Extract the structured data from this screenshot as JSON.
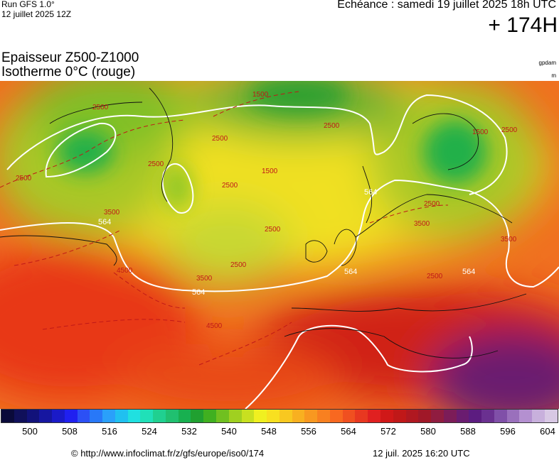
{
  "header": {
    "run_label": "Run GFS 1.0°",
    "run_date": "12 juillet 2025 12Z",
    "echeance": "Echéance : samedi 19 juillet 2025 18h UTC",
    "horizon": "+ 174H"
  },
  "product": {
    "title": "Epaisseur Z500-Z1000",
    "subtitle": "Isotherme 0°C (rouge)",
    "unit_main": "gpdam",
    "unit_sub": "m"
  },
  "map": {
    "thickness_contours": [
      {
        "label": "564"
      },
      {
        "label": "564"
      },
      {
        "label": "564"
      },
      {
        "label": "564"
      },
      {
        "label": "564"
      }
    ],
    "freezing_level_labels": [
      "2500",
      "1500",
      "2500",
      "1500",
      "2500",
      "2500",
      "2500",
      "2500",
      "1500",
      "2500",
      "2500",
      "2500",
      "2500",
      "3500",
      "4500",
      "3500",
      "2500",
      "3500",
      "4500",
      "3500"
    ]
  },
  "colorbar": {
    "ticks": [
      "500",
      "508",
      "516",
      "524",
      "532",
      "540",
      "548",
      "556",
      "564",
      "572",
      "580",
      "588",
      "596",
      "604"
    ],
    "colors": [
      "#0a0a3a",
      "#10105a",
      "#12127a",
      "#1616a0",
      "#1a1ac8",
      "#2020f0",
      "#2c50f5",
      "#2878f8",
      "#2aa0fa",
      "#20c0f0",
      "#20e0e0",
      "#20e0b8",
      "#20d090",
      "#20c070",
      "#18b050",
      "#20a030",
      "#40b020",
      "#70c020",
      "#a0d020",
      "#c8e020",
      "#f0f020",
      "#f8e020",
      "#f8c820",
      "#f8b020",
      "#f89820",
      "#f88020",
      "#f86820",
      "#f05020",
      "#e83820",
      "#e02020",
      "#d01818",
      "#c01818",
      "#b01820",
      "#a01828",
      "#901c40",
      "#7c1c58",
      "#6a1c70",
      "#5c1c80",
      "#6a3090",
      "#8050a8",
      "#9a70bc",
      "#b490d0",
      "#c8b0dc",
      "#d8c8e4"
    ],
    "colorbar_note": ""
  },
  "footer": {
    "source": "© http://www.infoclimat.fr/z/gfs/europe/iso0/174",
    "timestamp": "12 juil. 2025 16:20 UTC"
  }
}
